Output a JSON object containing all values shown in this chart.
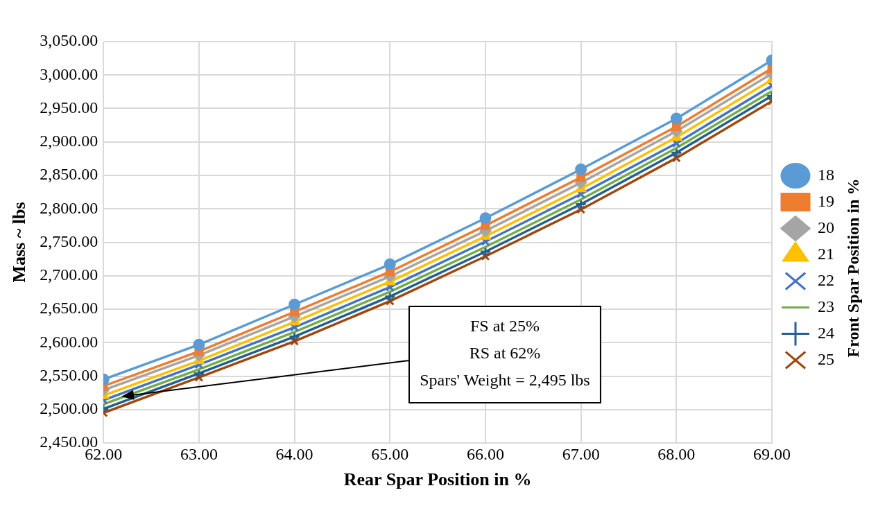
{
  "chart_data": {
    "type": "line",
    "xlabel": "Rear Spar Position in %",
    "ylabel": "Mass ~ lbs",
    "legend_title": "Front Spar Position in %",
    "x": [
      62,
      63,
      64,
      65,
      66,
      67,
      68,
      69
    ],
    "xlim": [
      62,
      69
    ],
    "xticks": [
      {
        "value": 62,
        "label": "62.00"
      },
      {
        "value": 63,
        "label": "63.00"
      },
      {
        "value": 64,
        "label": "64.00"
      },
      {
        "value": 65,
        "label": "65.00"
      },
      {
        "value": 66,
        "label": "66.00"
      },
      {
        "value": 67,
        "label": "67.00"
      },
      {
        "value": 68,
        "label": "68.00"
      },
      {
        "value": 69,
        "label": "69.00"
      }
    ],
    "ylim": [
      2450,
      3050
    ],
    "yticks": [
      {
        "value": 2450,
        "label": "2,450.00"
      },
      {
        "value": 2500,
        "label": "2,500.00"
      },
      {
        "value": 2550,
        "label": "2,550.00"
      },
      {
        "value": 2600,
        "label": "2,600.00"
      },
      {
        "value": 2650,
        "label": "2,650.00"
      },
      {
        "value": 2700,
        "label": "2,700.00"
      },
      {
        "value": 2750,
        "label": "2,750.00"
      },
      {
        "value": 2800,
        "label": "2,800.00"
      },
      {
        "value": 2850,
        "label": "2,850.00"
      },
      {
        "value": 2900,
        "label": "2,900.00"
      },
      {
        "value": 2950,
        "label": "2,950.00"
      },
      {
        "value": 3000,
        "label": "3,000.00"
      },
      {
        "value": 3050,
        "label": "3,050.00"
      }
    ],
    "grid": true,
    "legend": "right",
    "series": [
      {
        "name": "18",
        "color": "#5b9bd5",
        "marker": "circle",
        "values": [
          2545,
          2597,
          2657,
          2717,
          2786,
          2859,
          2935,
          3022
        ]
      },
      {
        "name": "19",
        "color": "#ed7d31",
        "marker": "square",
        "values": [
          2535,
          2587,
          2646,
          2706,
          2775,
          2847,
          2923,
          3010
        ]
      },
      {
        "name": "20",
        "color": "#a5a5a5",
        "marker": "diamond",
        "values": [
          2529,
          2581,
          2639,
          2699,
          2767,
          2839,
          2916,
          3002
        ]
      },
      {
        "name": "21",
        "color": "#ffc000",
        "marker": "triangle",
        "values": [
          2521,
          2573,
          2631,
          2691,
          2759,
          2830,
          2907,
          2993
        ]
      },
      {
        "name": "22",
        "color": "#4472c4",
        "marker": "cross",
        "values": [
          2514,
          2567,
          2623,
          2683,
          2751,
          2822,
          2898,
          2984
        ]
      },
      {
        "name": "23",
        "color": "#70ad47",
        "marker": "none",
        "values": [
          2508,
          2560,
          2616,
          2676,
          2743,
          2814,
          2891,
          2976
        ]
      },
      {
        "name": "24",
        "color": "#255e91",
        "marker": "plus",
        "values": [
          2501,
          2554,
          2609,
          2669,
          2736,
          2807,
          2884,
          2969
        ]
      },
      {
        "name": "25",
        "color": "#9e480e",
        "marker": "cross",
        "values": [
          2495,
          2548,
          2602,
          2662,
          2729,
          2799,
          2876,
          2961
        ]
      }
    ],
    "annotations": [
      "FS at 25%\nRS at 62%\nSpars' Weight = 2,495 lbs"
    ]
  }
}
